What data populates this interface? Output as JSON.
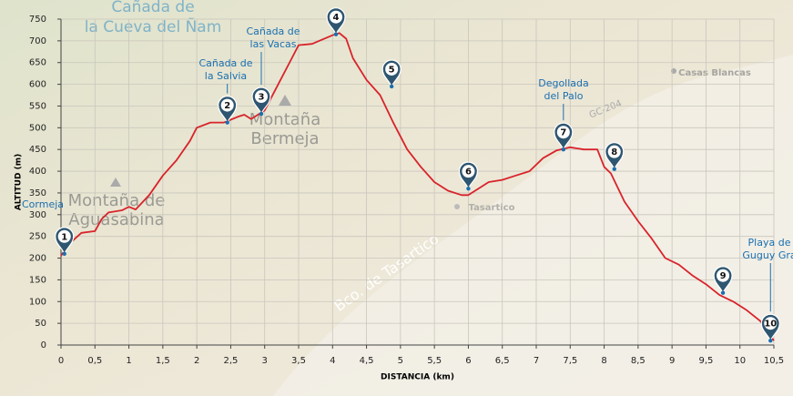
{
  "chart_data": {
    "type": "line",
    "x_label": "DISTANCIA (km)",
    "y_label": "ALTITUD (m)",
    "color": "#d8232a",
    "grid": true,
    "xlim": [
      0,
      10.5
    ],
    "ylim": [
      0,
      750
    ],
    "xticks": [
      0,
      {
        "value": 0.5,
        "label": "0,5"
      },
      1,
      {
        "value": 1.5,
        "label": "1,5"
      },
      2,
      {
        "value": 2.5,
        "label": "2,5"
      },
      3,
      {
        "value": 3.5,
        "label": "3,5"
      },
      4,
      {
        "value": 4.5,
        "label": "4,5"
      },
      5,
      {
        "value": 5.5,
        "label": "5,5"
      },
      6,
      {
        "value": 6.5,
        "label": "6,5"
      },
      7,
      {
        "value": 7.5,
        "label": "7,5"
      },
      8,
      {
        "value": 8.5,
        "label": "8,5"
      },
      9,
      {
        "value": 9.5,
        "label": "9,5"
      },
      10,
      {
        "value": 10.5,
        "label": "10,5"
      }
    ],
    "yticks": [
      0,
      50,
      100,
      150,
      200,
      250,
      300,
      350,
      400,
      450,
      500,
      550,
      600,
      650,
      700,
      750
    ],
    "x": [
      0,
      0.1,
      0.3,
      0.5,
      0.6,
      0.7,
      0.9,
      1.0,
      1.1,
      1.3,
      1.5,
      1.7,
      1.9,
      2.0,
      2.2,
      2.4,
      2.6,
      2.7,
      2.8,
      2.9,
      3.0,
      3.2,
      3.4,
      3.5,
      3.7,
      3.8,
      4.0,
      4.1,
      4.2,
      4.3,
      4.5,
      4.7,
      4.9,
      5.1,
      5.3,
      5.5,
      5.7,
      5.9,
      6.0,
      6.1,
      6.3,
      6.5,
      6.7,
      6.9,
      7.1,
      7.3,
      7.5,
      7.7,
      7.9,
      8.0,
      8.1,
      8.3,
      8.5,
      8.7,
      8.9,
      9.1,
      9.3,
      9.5,
      9.7,
      9.9,
      10.1,
      10.3,
      10.5
    ],
    "values": [
      205,
      230,
      258,
      262,
      290,
      305,
      310,
      318,
      312,
      345,
      390,
      425,
      470,
      500,
      512,
      512,
      525,
      530,
      520,
      530,
      540,
      600,
      660,
      690,
      693,
      700,
      713,
      718,
      705,
      660,
      610,
      575,
      510,
      450,
      410,
      375,
      355,
      345,
      345,
      355,
      375,
      380,
      390,
      400,
      430,
      448,
      455,
      450,
      450,
      410,
      395,
      330,
      285,
      245,
      200,
      185,
      160,
      140,
      115,
      100,
      80,
      55,
      10
    ],
    "markers": [
      {
        "label": "1",
        "x": 0.05,
        "y": 210
      },
      {
        "label": "2",
        "x": 2.45,
        "y": 512
      },
      {
        "label": "3",
        "x": 2.95,
        "y": 532
      },
      {
        "label": "4",
        "x": 4.05,
        "y": 715
      },
      {
        "label": "5",
        "x": 4.87,
        "y": 595
      },
      {
        "label": "6",
        "x": 6.0,
        "y": 360
      },
      {
        "label": "7",
        "x": 7.4,
        "y": 450
      },
      {
        "label": "8",
        "x": 8.15,
        "y": 405
      },
      {
        "label": "9",
        "x": 9.75,
        "y": 120
      },
      {
        "label": "10",
        "x": 10.45,
        "y": 10
      }
    ],
    "annotations": [
      [
        "Cormeja"
      ],
      [
        "Cañada de",
        "la Salvia"
      ],
      [
        "Cañada de",
        "las Vacas"
      ],
      [
        "Degollada",
        "del Palo"
      ],
      [
        "Playa de",
        "Guguy Gra"
      ]
    ],
    "map_labels": [
      [
        "Cañada de",
        "la Cueva del Ñam"
      ],
      [
        "Montaña",
        "Bermeja"
      ],
      [
        "Montaña de",
        "Aguasabina"
      ],
      [
        "Casas Blancas"
      ],
      [
        "Tasartico"
      ],
      [
        "GC-204"
      ],
      [
        "Bco. de Tasartico"
      ]
    ]
  }
}
